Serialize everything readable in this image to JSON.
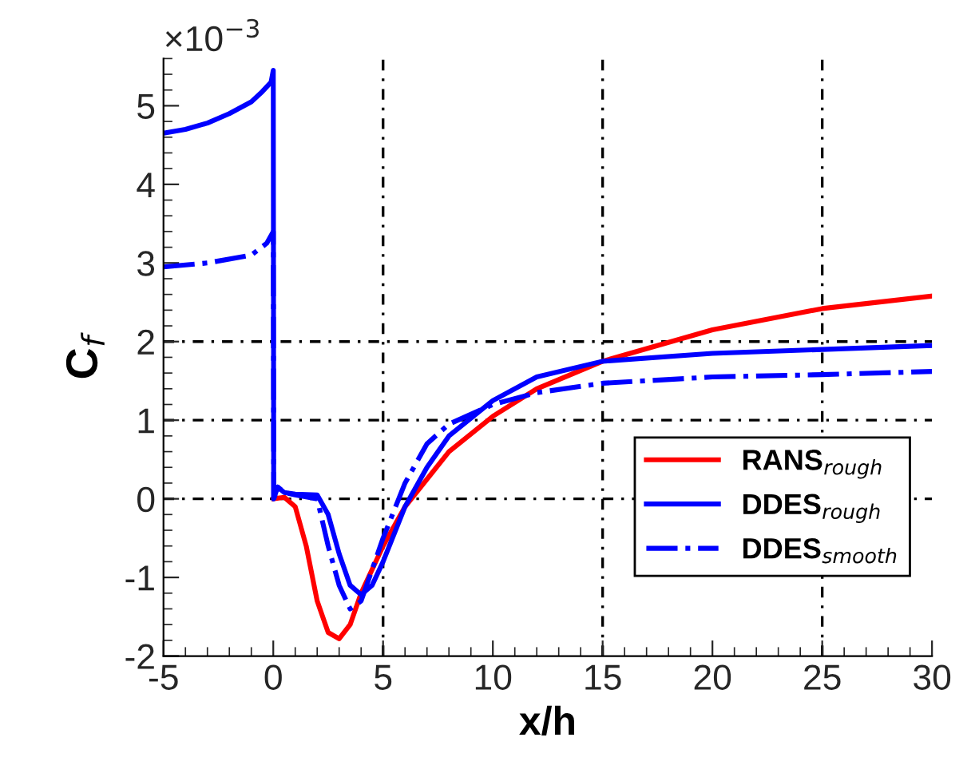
{
  "chart_data": {
    "type": "line",
    "xlabel": "x/h",
    "ylabel": "C$_{f}$",
    "annotations": [
      "×10$^{−3}$"
    ],
    "xlim": [
      -5,
      30
    ],
    "xticks": [
      -5,
      0,
      5,
      10,
      15,
      20,
      25,
      30
    ],
    "ylim": [
      -2,
      5.6
    ],
    "yticks": [
      -2,
      -1,
      0,
      1,
      2,
      3,
      4,
      5
    ],
    "grid": false,
    "legend": "right",
    "ref_lines": [
      {
        "axis": "x",
        "value": 5,
        "line_style": "dashdot",
        "color": "#000000"
      },
      {
        "axis": "x",
        "value": 15,
        "line_style": "dashdot",
        "color": "#000000"
      },
      {
        "axis": "x",
        "value": 25,
        "line_style": "dashdot",
        "color": "#000000"
      },
      {
        "axis": "y",
        "value": 0,
        "line_style": "dashdot",
        "color": "#000000"
      },
      {
        "axis": "y",
        "value": 1,
        "line_style": "dashdot",
        "color": "#000000"
      },
      {
        "axis": "y",
        "value": 2,
        "line_style": "dashdot",
        "color": "#000000"
      }
    ],
    "series": [
      {
        "name": "RANS$_{rough}$",
        "color": "#ff0000",
        "line_style": "solid",
        "x": [
          0.02,
          0.5,
          1,
          1.5,
          2,
          2.5,
          3,
          3.5,
          4,
          5,
          6,
          8,
          10,
          12,
          15,
          20,
          25,
          30
        ],
        "values": [
          0,
          0.02,
          -0.1,
          -0.6,
          -1.3,
          -1.7,
          -1.78,
          -1.6,
          -1.2,
          -0.6,
          -0.1,
          0.6,
          1.05,
          1.4,
          1.75,
          2.15,
          2.42,
          2.58
        ]
      },
      {
        "name": "DDES$_{rough}$",
        "color": "#0000ff",
        "line_style": "solid",
        "x": [
          -5,
          -4,
          -3,
          -2,
          -1,
          -0.5,
          -0.1,
          0,
          0.02,
          0.2,
          0.5,
          1,
          2,
          2.5,
          3,
          3.5,
          4,
          4.5,
          5,
          6,
          7,
          8,
          10,
          12,
          15,
          20,
          25,
          30
        ],
        "values": [
          4.65,
          4.7,
          4.78,
          4.9,
          5.05,
          5.18,
          5.3,
          5.45,
          0,
          0.15,
          0.08,
          0.06,
          0.05,
          -0.2,
          -0.7,
          -1.1,
          -1.22,
          -1.1,
          -0.8,
          -0.1,
          0.4,
          0.8,
          1.25,
          1.55,
          1.75,
          1.85,
          1.9,
          1.95
        ]
      },
      {
        "name": "DDES$_{smooth}$",
        "color": "#0000ff",
        "line_style": "dashdot",
        "x": [
          -5,
          -3,
          -1,
          -0.3,
          0,
          0.02,
          0.2,
          0.5,
          1,
          2,
          2.5,
          3,
          3.5,
          4,
          5,
          6,
          7,
          8,
          10,
          12,
          15,
          20,
          25,
          30
        ],
        "values": [
          2.95,
          3.0,
          3.1,
          3.25,
          3.4,
          0,
          0.15,
          0.08,
          0.05,
          0.0,
          -0.6,
          -1.1,
          -1.4,
          -1.3,
          -0.5,
          0.2,
          0.7,
          0.95,
          1.2,
          1.35,
          1.47,
          1.55,
          1.58,
          1.62
        ]
      }
    ]
  }
}
